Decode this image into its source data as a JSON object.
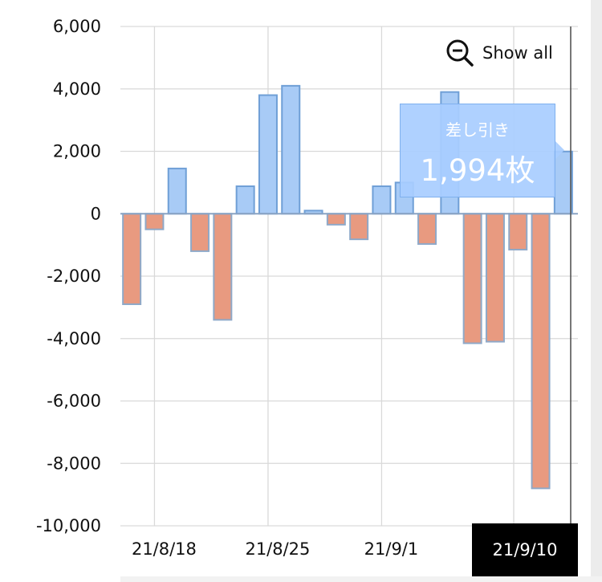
{
  "chart_data": {
    "type": "bar",
    "title": "",
    "xlabel": "",
    "ylabel": "",
    "ylim": [
      -10000,
      6000
    ],
    "yticks": [
      6000,
      4000,
      2000,
      0,
      -2000,
      -4000,
      -6000,
      -8000,
      -10000
    ],
    "ytick_labels": [
      "6,000",
      "4,000",
      "2,000",
      "0",
      "-2,000",
      "-4,000",
      "-6,000",
      "-8,000",
      "-10,000"
    ],
    "x_label_every": 5,
    "x_tick_labels": [
      "21/8/18",
      "21/8/25",
      "21/9/1",
      "21/9/10"
    ],
    "values": [
      -2900,
      -500,
      1450,
      -1200,
      -3400,
      880,
      3800,
      4100,
      100,
      -350,
      -820,
      880,
      1000,
      -970,
      3900,
      -4150,
      -4100,
      -1150,
      -8800,
      1994
    ],
    "positive_color": "#a8cbf6",
    "negative_color": "#e89a80",
    "grid": true
  },
  "ui": {
    "show_all_label": "Show all",
    "tooltip_label": "差し引き",
    "tooltip_value": "1,994枚",
    "crosshair_label": "21/9/10"
  }
}
